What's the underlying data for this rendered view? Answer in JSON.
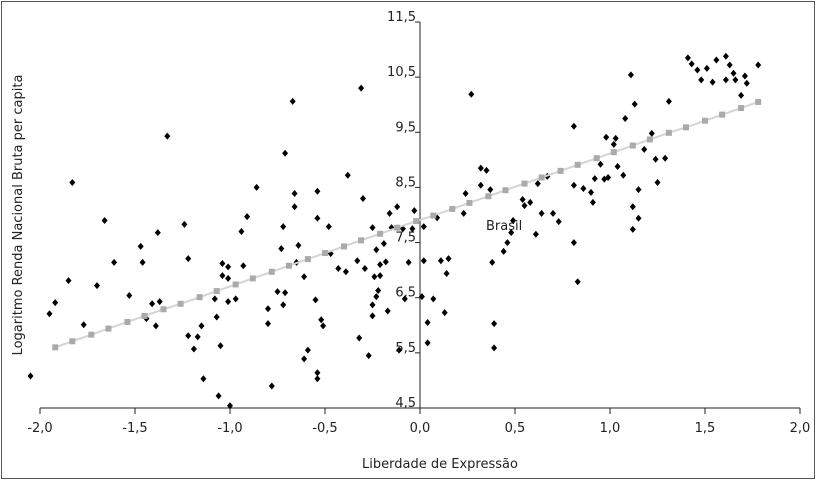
{
  "chart_data": {
    "type": "scatter",
    "x_label": "Liberdade de Expressão",
    "y_label": "Logaritmo Renda Nacional Bruta per capita",
    "annotation": "Brasil",
    "xlim": [
      -2,
      2
    ],
    "ylim": [
      4.5,
      11.5
    ],
    "xticks": [
      {
        "value": -2,
        "label": "-2,0"
      },
      {
        "value": -1.5,
        "label": "-1,5"
      },
      {
        "value": -1,
        "label": "-1,0"
      },
      {
        "value": -0.5,
        "label": "-0,5"
      },
      {
        "value": 0,
        "label": "0,0"
      },
      {
        "value": 0.5,
        "label": "0,5"
      },
      {
        "value": 1,
        "label": "1,0"
      },
      {
        "value": 1.5,
        "label": "1,5"
      },
      {
        "value": 2,
        "label": "2,0"
      }
    ],
    "yticks": [
      {
        "value": 4.5,
        "label": "4,5"
      },
      {
        "value": 5.5,
        "label": "5,5"
      },
      {
        "value": 6.5,
        "label": "6,5"
      },
      {
        "value": 7.5,
        "label": "7,5"
      },
      {
        "value": 8.5,
        "label": "8,5"
      },
      {
        "value": 9.5,
        "label": "9,5"
      },
      {
        "value": 10.5,
        "label": "10,5"
      },
      {
        "value": 11.5,
        "label": "11,5"
      }
    ],
    "series": [
      {
        "color": "#000000",
        "marker": "diamond",
        "x": [
          -2.05,
          -1.83,
          -1.95,
          -1.92,
          -1.85,
          -1.77,
          -1.7,
          -1.66,
          -1.61,
          -1.53,
          -1.47,
          -1.46,
          -1.44,
          -1.41,
          -1.38,
          -1.37,
          -1.33,
          -1.39,
          -1.24,
          -1.22,
          -1.22,
          -1.19,
          -1.17,
          -1.15,
          -1.14,
          -1.08,
          -1.07,
          -1.05,
          -1.01,
          -1.04,
          -1.04,
          -1.01,
          -1.01,
          -1.06,
          -1.0,
          -0.97,
          -0.93,
          -0.94,
          -0.91,
          -0.86,
          -0.8,
          -0.8,
          -0.78,
          -0.75,
          -0.72,
          -0.72,
          -0.71,
          -0.73,
          -0.71,
          -0.67,
          -0.66,
          -0.66,
          -0.64,
          -0.65,
          -0.61,
          -0.61,
          -0.59,
          -0.55,
          -0.54,
          -0.54,
          -0.54,
          -0.54,
          -0.52,
          -0.51,
          -0.48,
          -0.47,
          -0.43,
          -0.39,
          -0.38,
          -0.33,
          -0.32,
          -0.31,
          -0.3,
          -0.29,
          -0.27,
          -0.25,
          -0.25,
          -0.24,
          -0.25,
          -0.23,
          -0.23,
          -0.22,
          -0.21,
          -0.21,
          -0.19,
          -0.18,
          -0.16,
          -0.17,
          -0.15,
          -0.12,
          -0.09,
          -0.11,
          -0.08,
          -0.06,
          -0.04,
          -0.03,
          0.02,
          0.01,
          0.04,
          0.04,
          0.02,
          0.07,
          0.09,
          0.11,
          0.13,
          0.14,
          0.15,
          0.23,
          0.24,
          0.27,
          0.32,
          0.32,
          0.35,
          0.37,
          0.39,
          0.38,
          0.39,
          0.44,
          0.46,
          0.48,
          0.49,
          0.54,
          0.55,
          0.58,
          0.62,
          0.61,
          0.64,
          0.67,
          0.7,
          0.73,
          0.81,
          0.81,
          0.81,
          0.83,
          0.86,
          0.9,
          0.91,
          0.92,
          0.95,
          0.97,
          0.98,
          0.99,
          1.03,
          1.02,
          1.04,
          1.07,
          1.08,
          1.13,
          1.15,
          1.15,
          1.12,
          1.12,
          1.11,
          1.18,
          1.24,
          1.22,
          1.25,
          1.29,
          1.31,
          1.41,
          1.43,
          1.46,
          1.48,
          1.51,
          1.54,
          1.56,
          1.61,
          1.61,
          1.63,
          1.65,
          1.66,
          1.69,
          1.71,
          1.72,
          1.78
        ],
        "values": [
          5.08,
          8.59,
          6.21,
          6.41,
          6.81,
          6.01,
          6.72,
          7.9,
          7.14,
          6.54,
          7.43,
          7.14,
          6.12,
          6.39,
          7.68,
          6.43,
          9.43,
          5.99,
          7.83,
          7.21,
          5.81,
          5.57,
          5.79,
          5.99,
          5.03,
          6.48,
          6.15,
          5.63,
          6.85,
          7.12,
          6.9,
          7.06,
          6.43,
          4.72,
          4.54,
          6.48,
          7.08,
          7.7,
          7.97,
          8.5,
          6.03,
          6.3,
          4.9,
          6.61,
          6.37,
          7.79,
          6.59,
          7.39,
          9.12,
          10.06,
          8.39,
          8.15,
          7.45,
          7.14,
          6.88,
          5.39,
          5.55,
          6.46,
          5.14,
          5.03,
          8.43,
          7.94,
          6.1,
          5.99,
          7.79,
          7.3,
          7.03,
          6.97,
          8.72,
          7.17,
          5.77,
          10.3,
          8.3,
          7.03,
          5.45,
          6.17,
          6.37,
          6.88,
          7.77,
          7.37,
          6.52,
          6.63,
          6.9,
          7.1,
          7.48,
          7.15,
          8.03,
          6.26,
          7.77,
          8.15,
          7.75,
          5.55,
          6.48,
          7.14,
          7.75,
          8.08,
          7.79,
          6.52,
          5.68,
          6.05,
          7.17,
          6.48,
          7.95,
          7.17,
          6.23,
          6.94,
          7.21,
          8.03,
          8.39,
          10.19,
          8.85,
          8.54,
          8.81,
          8.46,
          6.03,
          7.14,
          5.59,
          7.34,
          7.5,
          7.68,
          7.9,
          8.28,
          8.17,
          8.23,
          8.57,
          7.65,
          8.03,
          8.7,
          8.03,
          7.88,
          8.54,
          7.5,
          9.61,
          6.79,
          8.48,
          8.41,
          8.23,
          8.66,
          8.92,
          8.65,
          9.41,
          8.68,
          9.39,
          9.28,
          8.88,
          8.72,
          9.75,
          10.01,
          8.46,
          7.94,
          8.15,
          7.74,
          10.54,
          9.19,
          9.01,
          9.48,
          8.59,
          9.03,
          10.06,
          10.85,
          10.74,
          10.63,
          10.45,
          10.66,
          10.41,
          10.81,
          10.88,
          10.45,
          10.72,
          10.57,
          10.45,
          10.17,
          10.52,
          10.39,
          10.72
        ]
      },
      {
        "color": "#aaaaaa",
        "marker": "square",
        "line_color": "#d4d4d4",
        "x": [
          -1.92,
          -1.83,
          -1.73,
          -1.64,
          -1.54,
          -1.45,
          -1.35,
          -1.26,
          -1.16,
          -1.07,
          -0.97,
          -0.88,
          -0.78,
          -0.69,
          -0.59,
          -0.5,
          -0.4,
          -0.31,
          -0.21,
          -0.12,
          -0.02,
          0.07,
          0.17,
          0.26,
          0.36,
          0.45,
          0.55,
          0.64,
          0.74,
          0.83,
          0.93,
          1.02,
          1.12,
          1.21,
          1.31,
          1.4,
          1.5,
          1.59,
          1.69,
          1.78
        ],
        "values": [
          5.6,
          5.71,
          5.83,
          5.94,
          6.06,
          6.17,
          6.29,
          6.39,
          6.51,
          6.62,
          6.74,
          6.85,
          6.97,
          7.08,
          7.2,
          7.31,
          7.43,
          7.54,
          7.66,
          7.77,
          7.89,
          7.99,
          8.11,
          8.22,
          8.34,
          8.45,
          8.57,
          8.68,
          8.8,
          8.91,
          9.03,
          9.14,
          9.26,
          9.37,
          9.49,
          9.59,
          9.71,
          9.82,
          9.94,
          10.05
        ]
      }
    ]
  }
}
